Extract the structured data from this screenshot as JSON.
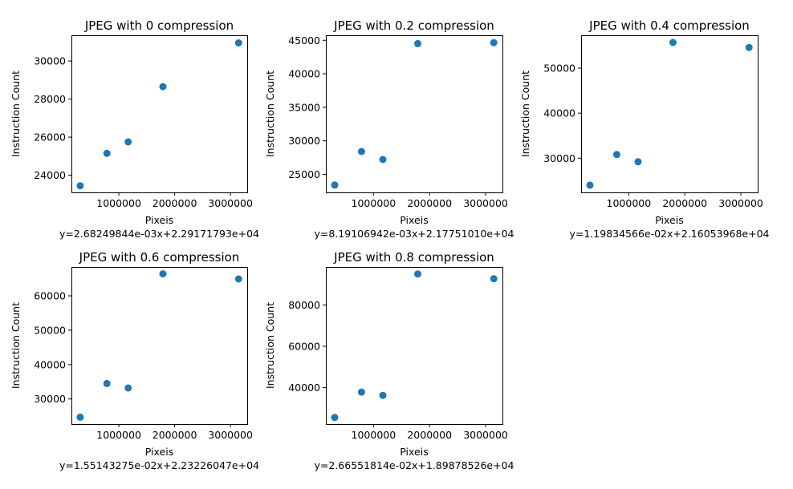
{
  "chart_data": [
    {
      "type": "scatter",
      "title": "JPEG with 0 compression",
      "xlabel": "Pixeis",
      "ylabel": "Instruction Count",
      "equation": "y=2.68249844e-03x+2.29171793e+04",
      "marker_color": "#1f77b4",
      "grid": false,
      "x": [
        307200,
        786432,
        1166400,
        1790000,
        3145728
      ],
      "y": [
        23450,
        25150,
        25750,
        28650,
        30950
      ],
      "xlim": [
        150000,
        3300000
      ],
      "ylim": [
        23100,
        31350
      ],
      "xticks": [
        1000000,
        2000000,
        3000000
      ],
      "xtick_labels": [
        "1000000",
        "2000000",
        "3000000"
      ],
      "yticks": [
        24000,
        26000,
        28000,
        30000
      ],
      "ytick_labels": [
        "24000",
        "26000",
        "28000",
        "30000"
      ]
    },
    {
      "type": "scatter",
      "title": "JPEG with 0.2 compression",
      "xlabel": "Pixeis",
      "ylabel": "Instruction Count",
      "equation": "y=8.19106942e-03x+2.17751010e+04",
      "marker_color": "#1f77b4",
      "grid": false,
      "x": [
        307200,
        786432,
        1166400,
        1790000,
        3145728
      ],
      "y": [
        23400,
        28400,
        27200,
        44500,
        44650
      ],
      "xlim": [
        150000,
        3300000
      ],
      "ylim": [
        22300,
        45750
      ],
      "xticks": [
        1000000,
        2000000,
        3000000
      ],
      "xtick_labels": [
        "1000000",
        "2000000",
        "3000000"
      ],
      "yticks": [
        25000,
        30000,
        35000,
        40000,
        45000
      ],
      "ytick_labels": [
        "25000",
        "30000",
        "35000",
        "40000",
        "45000"
      ]
    },
    {
      "type": "scatter",
      "title": "JPEG with 0.4 compression",
      "xlabel": "Pixeis",
      "ylabel": "Instruction Count",
      "equation": "y=1.19834566e-02x+2.16053968e+04",
      "marker_color": "#1f77b4",
      "grid": false,
      "x": [
        307200,
        786432,
        1166400,
        1790000,
        3145728
      ],
      "y": [
        24000,
        30800,
        29200,
        55700,
        54600
      ],
      "xlim": [
        150000,
        3300000
      ],
      "ylim": [
        22400,
        57300
      ],
      "xticks": [
        1000000,
        2000000,
        3000000
      ],
      "xtick_labels": [
        "1000000",
        "2000000",
        "3000000"
      ],
      "yticks": [
        30000,
        40000,
        50000
      ],
      "ytick_labels": [
        "30000",
        "40000",
        "50000"
      ]
    },
    {
      "type": "scatter",
      "title": "JPEG with 0.6 compression",
      "xlabel": "Pixeis",
      "ylabel": "Instruction Count",
      "equation": "y=1.55143275e-02x+2.23226047e+04",
      "marker_color": "#1f77b4",
      "grid": false,
      "x": [
        307200,
        786432,
        1166400,
        1790000,
        3145728
      ],
      "y": [
        24700,
        34500,
        33200,
        66400,
        64900
      ],
      "xlim": [
        150000,
        3300000
      ],
      "ylim": [
        22700,
        68400
      ],
      "xticks": [
        1000000,
        2000000,
        3000000
      ],
      "xtick_labels": [
        "1000000",
        "2000000",
        "3000000"
      ],
      "yticks": [
        30000,
        40000,
        50000,
        60000
      ],
      "ytick_labels": [
        "30000",
        "40000",
        "50000",
        "60000"
      ]
    },
    {
      "type": "scatter",
      "title": "JPEG with 0.8 compression",
      "xlabel": "Pixeis",
      "ylabel": "Instruction Count",
      "equation": "y=2.66551814e-02x+1.89878526e+04",
      "marker_color": "#1f77b4",
      "grid": false,
      "x": [
        307200,
        786432,
        1166400,
        1790000,
        3145728
      ],
      "y": [
        25500,
        37800,
        36200,
        95000,
        92700
      ],
      "xlim": [
        150000,
        3300000
      ],
      "ylim": [
        22300,
        98400
      ],
      "xticks": [
        1000000,
        2000000,
        3000000
      ],
      "xtick_labels": [
        "1000000",
        "2000000",
        "3000000"
      ],
      "yticks": [
        40000,
        60000,
        80000
      ],
      "ytick_labels": [
        "40000",
        "60000",
        "80000"
      ]
    }
  ]
}
